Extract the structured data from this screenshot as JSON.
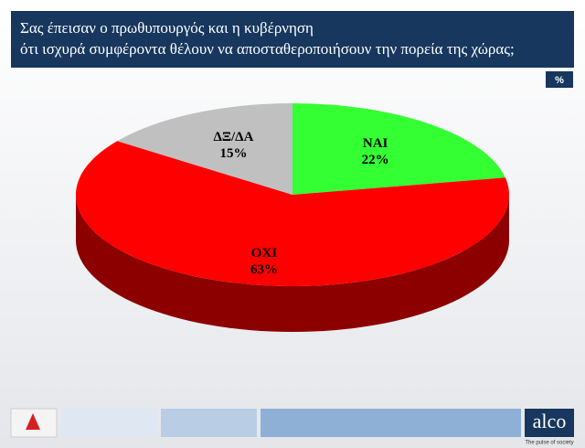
{
  "chart_data": {
    "type": "pie",
    "title": "Σας έπεισαν ο πρωθυπουργός και η κυβέρνηση",
    "subtitle": "ότι  ισχυρά συμφέροντα θέλουν να αποσταθεροποιήσουν την πορεία της χώρας;",
    "unit_label": "%",
    "categories": [
      "ΝΑΙ",
      "ΟΧΙ",
      "ΔΞ/ΔΑ"
    ],
    "values": [
      22,
      63,
      15
    ],
    "value_labels": [
      "22%",
      "63%",
      "15%"
    ],
    "colors": [
      "#33ff33",
      "#ff0000",
      "#c0c0c0"
    ]
  },
  "footer": {
    "brand": "alco",
    "tagline": "The pulse of society"
  }
}
